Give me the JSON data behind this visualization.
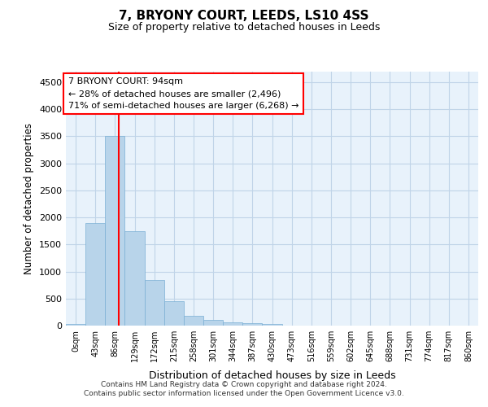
{
  "title_line1": "7, BRYONY COURT, LEEDS, LS10 4SS",
  "title_line2": "Size of property relative to detached houses in Leeds",
  "xlabel": "Distribution of detached houses by size in Leeds",
  "ylabel": "Number of detached properties",
  "bar_labels": [
    "0sqm",
    "43sqm",
    "86sqm",
    "129sqm",
    "172sqm",
    "215sqm",
    "258sqm",
    "301sqm",
    "344sqm",
    "387sqm",
    "430sqm",
    "473sqm",
    "516sqm",
    "559sqm",
    "602sqm",
    "645sqm",
    "688sqm",
    "731sqm",
    "774sqm",
    "817sqm",
    "860sqm"
  ],
  "bar_values": [
    30,
    1900,
    3500,
    1750,
    840,
    450,
    175,
    100,
    60,
    40,
    35,
    0,
    0,
    0,
    0,
    0,
    0,
    0,
    0,
    0,
    0
  ],
  "bar_color": "#b8d4ea",
  "bar_edge_color": "#7aafd4",
  "grid_color": "#c0d4e8",
  "background_color": "#e8f2fb",
  "annotation_line1": "7 BRYONY COURT: 94sqm",
  "annotation_line2": "← 28% of detached houses are smaller (2,496)",
  "annotation_line3": "71% of semi-detached houses are larger (6,268) →",
  "annotation_box_color": "white",
  "annotation_box_edgecolor": "red",
  "vline_x": 2.19,
  "vline_color": "red",
  "ylim": [
    0,
    4700
  ],
  "yticks": [
    0,
    500,
    1000,
    1500,
    2000,
    2500,
    3000,
    3500,
    4000,
    4500
  ],
  "footer_line1": "Contains HM Land Registry data © Crown copyright and database right 2024.",
  "footer_line2": "Contains public sector information licensed under the Open Government Licence v3.0."
}
